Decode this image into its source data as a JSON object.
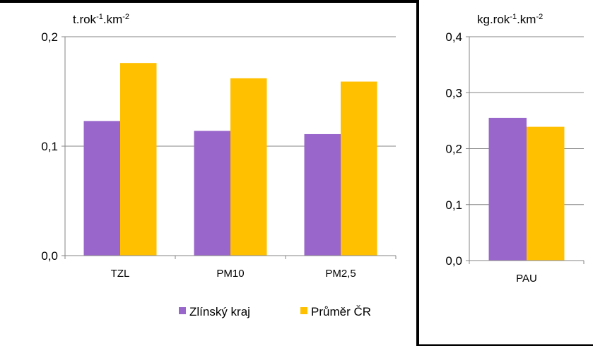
{
  "colors": {
    "series_1": "#9966cc",
    "series_2": "#ffc000",
    "gridline": "#868686",
    "border": "#000000"
  },
  "chart_data": [
    {
      "type": "bar",
      "unit_label": "t.rok-1.km-2",
      "unit_text": "t.rok",
      "unit_exp1": "-1",
      "unit_mid": ".km",
      "unit_exp2": "-2",
      "categories": [
        "TZL",
        "PM10",
        "PM2,5"
      ],
      "series": [
        {
          "name": "Zlínský kraj",
          "values": [
            0.123,
            0.114,
            0.111
          ]
        },
        {
          "name": "Průměr ČR",
          "values": [
            0.176,
            0.162,
            0.159
          ]
        }
      ],
      "ylim": [
        0,
        0.2
      ],
      "yticks": [
        0,
        0.1,
        0.2
      ],
      "ytick_labels": [
        "0,0",
        "0,1",
        "0,2"
      ],
      "grid": true,
      "legend": "bottom"
    },
    {
      "type": "bar",
      "unit_label": "kg.rok-1.km-2",
      "unit_text": "kg.rok",
      "unit_exp1": "-1",
      "unit_mid": ".km",
      "unit_exp2": "-2",
      "categories": [
        "PAU"
      ],
      "series": [
        {
          "name": "Zlínský kraj",
          "values": [
            0.255
          ]
        },
        {
          "name": "Průměr ČR",
          "values": [
            0.239
          ]
        }
      ],
      "ylim": [
        0,
        0.4
      ],
      "yticks": [
        0,
        0.1,
        0.2,
        0.3,
        0.4
      ],
      "ytick_labels": [
        "0,0",
        "0,1",
        "0,2",
        "0,3",
        "0,4"
      ],
      "grid": true
    }
  ]
}
